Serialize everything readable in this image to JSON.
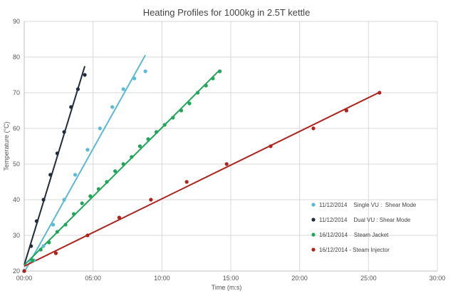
{
  "chart_data": {
    "type": "scatter",
    "title": "Heating Profiles for 1000kg in 2.5T kettle",
    "xlabel": "Time (m:s)",
    "ylabel": "Temperature (°C)",
    "x_unit": "minutes",
    "xlim": [
      0,
      30
    ],
    "ylim": [
      20,
      90
    ],
    "x_ticks": [
      {
        "value": 0,
        "label": "00:00"
      },
      {
        "value": 5,
        "label": "05:00"
      },
      {
        "value": 10,
        "label": "10:00"
      },
      {
        "value": 15,
        "label": "15:00"
      },
      {
        "value": 20,
        "label": "20:00"
      },
      {
        "value": 25,
        "label": "25:00"
      },
      {
        "value": 30,
        "label": "30:00"
      }
    ],
    "y_ticks": [
      20,
      30,
      40,
      50,
      60,
      70,
      80,
      90
    ],
    "grid": true,
    "legend_position": "bottom-right",
    "trendlines": true,
    "series": [
      {
        "name": "11/12/2014    Single VU :  Shear Mode",
        "color": "#5bbad5",
        "x": [
          0,
          0.7,
          1.4,
          2.1,
          2.9,
          3.7,
          4.6,
          5.5,
          6.4,
          7.2,
          8.0,
          8.8
        ],
        "y": [
          20,
          23,
          27,
          33,
          40,
          47,
          54,
          60,
          66,
          71,
          74,
          76
        ]
      },
      {
        "name": "11/12/2014    Dual VU : Shear Mode",
        "color": "#1f2d3f",
        "x": [
          0,
          0.5,
          0.9,
          1.4,
          1.9,
          2.4,
          2.9,
          3.4,
          3.9,
          4.4
        ],
        "y": [
          20,
          27,
          34,
          40,
          47,
          53,
          59,
          66,
          71,
          75
        ]
      },
      {
        "name": "16/12/2014    Steam Jacket",
        "color": "#22a65a",
        "x": [
          0,
          0.6,
          1.2,
          1.8,
          2.4,
          3.0,
          3.6,
          4.2,
          4.8,
          5.4,
          6.0,
          6.6,
          7.2,
          7.8,
          8.4,
          9.0,
          9.6,
          10.2,
          10.8,
          11.4,
          12.0,
          12.6,
          13.2,
          13.7,
          14.2
        ],
        "y": [
          20,
          23,
          26,
          28,
          31,
          33,
          36,
          39,
          41,
          43,
          45,
          48,
          50,
          52,
          55,
          57,
          59,
          61,
          63,
          65,
          67,
          70,
          72,
          74,
          76
        ]
      },
      {
        "name": "16/12/2014 - Steam Injector",
        "color": "#b0231c",
        "x": [
          0,
          2.3,
          4.6,
          6.9,
          9.2,
          11.8,
          14.7,
          17.9,
          21.0,
          23.4,
          25.8
        ],
        "y": [
          20,
          25,
          30,
          35,
          40,
          45,
          50,
          55,
          60,
          65,
          70
        ]
      }
    ]
  }
}
